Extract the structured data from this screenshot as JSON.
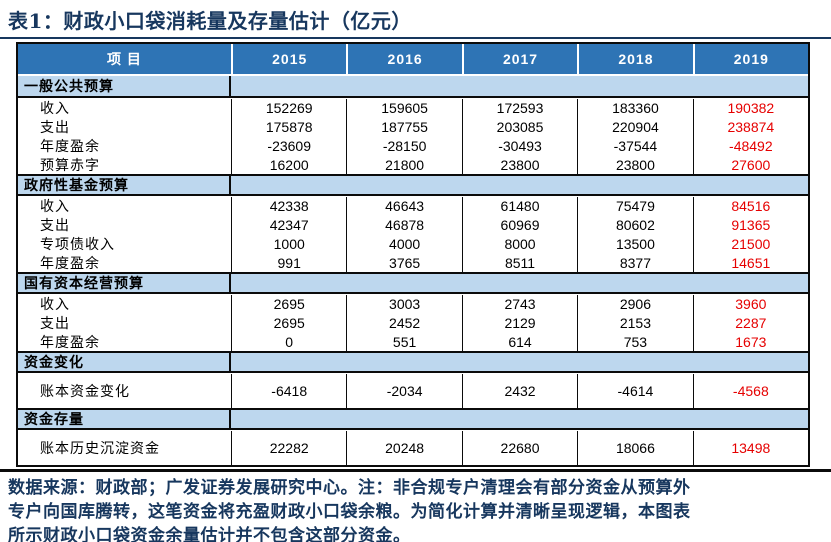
{
  "title": "表1：财政小口袋消耗量及存量估计（亿元）",
  "colors": {
    "header_bg": "#2E74B5",
    "section_bg": "#BDD7EE",
    "highlight_red": "#E60000",
    "ink_navy": "#17375E",
    "border": "#0b0b0b"
  },
  "table": {
    "item_header": "项 目",
    "years": [
      "2015",
      "2016",
      "2017",
      "2018",
      "2019"
    ],
    "sections": [
      {
        "name": "一般公共预算",
        "tall": false,
        "rows": [
          {
            "label": "收入",
            "values": [
              "152269",
              "159605",
              "172593",
              "183360",
              "190382"
            ]
          },
          {
            "label": "支出",
            "values": [
              "175878",
              "187755",
              "203085",
              "220904",
              "238874"
            ]
          },
          {
            "label": "年度盈余",
            "values": [
              "-23609",
              "-28150",
              "-30493",
              "-37544",
              "-48492"
            ]
          },
          {
            "label": "预算赤字",
            "values": [
              "16200",
              "21800",
              "23800",
              "23800",
              "27600"
            ]
          }
        ]
      },
      {
        "name": "政府性基金预算",
        "tall": false,
        "rows": [
          {
            "label": "收入",
            "values": [
              "42338",
              "46643",
              "61480",
              "75479",
              "84516"
            ]
          },
          {
            "label": "支出",
            "values": [
              "42347",
              "46878",
              "60969",
              "80602",
              "91365"
            ]
          },
          {
            "label": "专项债收入",
            "values": [
              "1000",
              "4000",
              "8000",
              "13500",
              "21500"
            ]
          },
          {
            "label": "年度盈余",
            "values": [
              "991",
              "3765",
              "8511",
              "8377",
              "14651"
            ]
          }
        ]
      },
      {
        "name": "国有资本经营预算",
        "tall": false,
        "rows": [
          {
            "label": "收入",
            "values": [
              "2695",
              "3003",
              "2743",
              "2906",
              "3960"
            ]
          },
          {
            "label": "支出",
            "values": [
              "2695",
              "2452",
              "2129",
              "2153",
              "2287"
            ]
          },
          {
            "label": "年度盈余",
            "values": [
              "0",
              "551",
              "614",
              "753",
              "1673"
            ]
          }
        ]
      },
      {
        "name": "资金变化",
        "tall": true,
        "rows": [
          {
            "label": "账本资金变化",
            "values": [
              "-6418",
              "-2034",
              "2432",
              "-4614",
              "-4568"
            ]
          }
        ]
      },
      {
        "name": "资金存量",
        "tall": true,
        "rows": [
          {
            "label": "账本历史沉淀资金",
            "values": [
              "22282",
              "20248",
              "22680",
              "18066",
              "13498"
            ]
          }
        ]
      }
    ]
  },
  "footnote": {
    "lines": [
      "数据来源：财政部；广发证券发展研究中心。注：非合规专户清理会有部分资金从预算外",
      "专户向国库腾转，这笔资金将充盈财政小口袋余粮。为简化计算并清晰呈现逻辑，本图表",
      "所示财政小口袋资金余量估计并不包含这部分资金。"
    ]
  }
}
